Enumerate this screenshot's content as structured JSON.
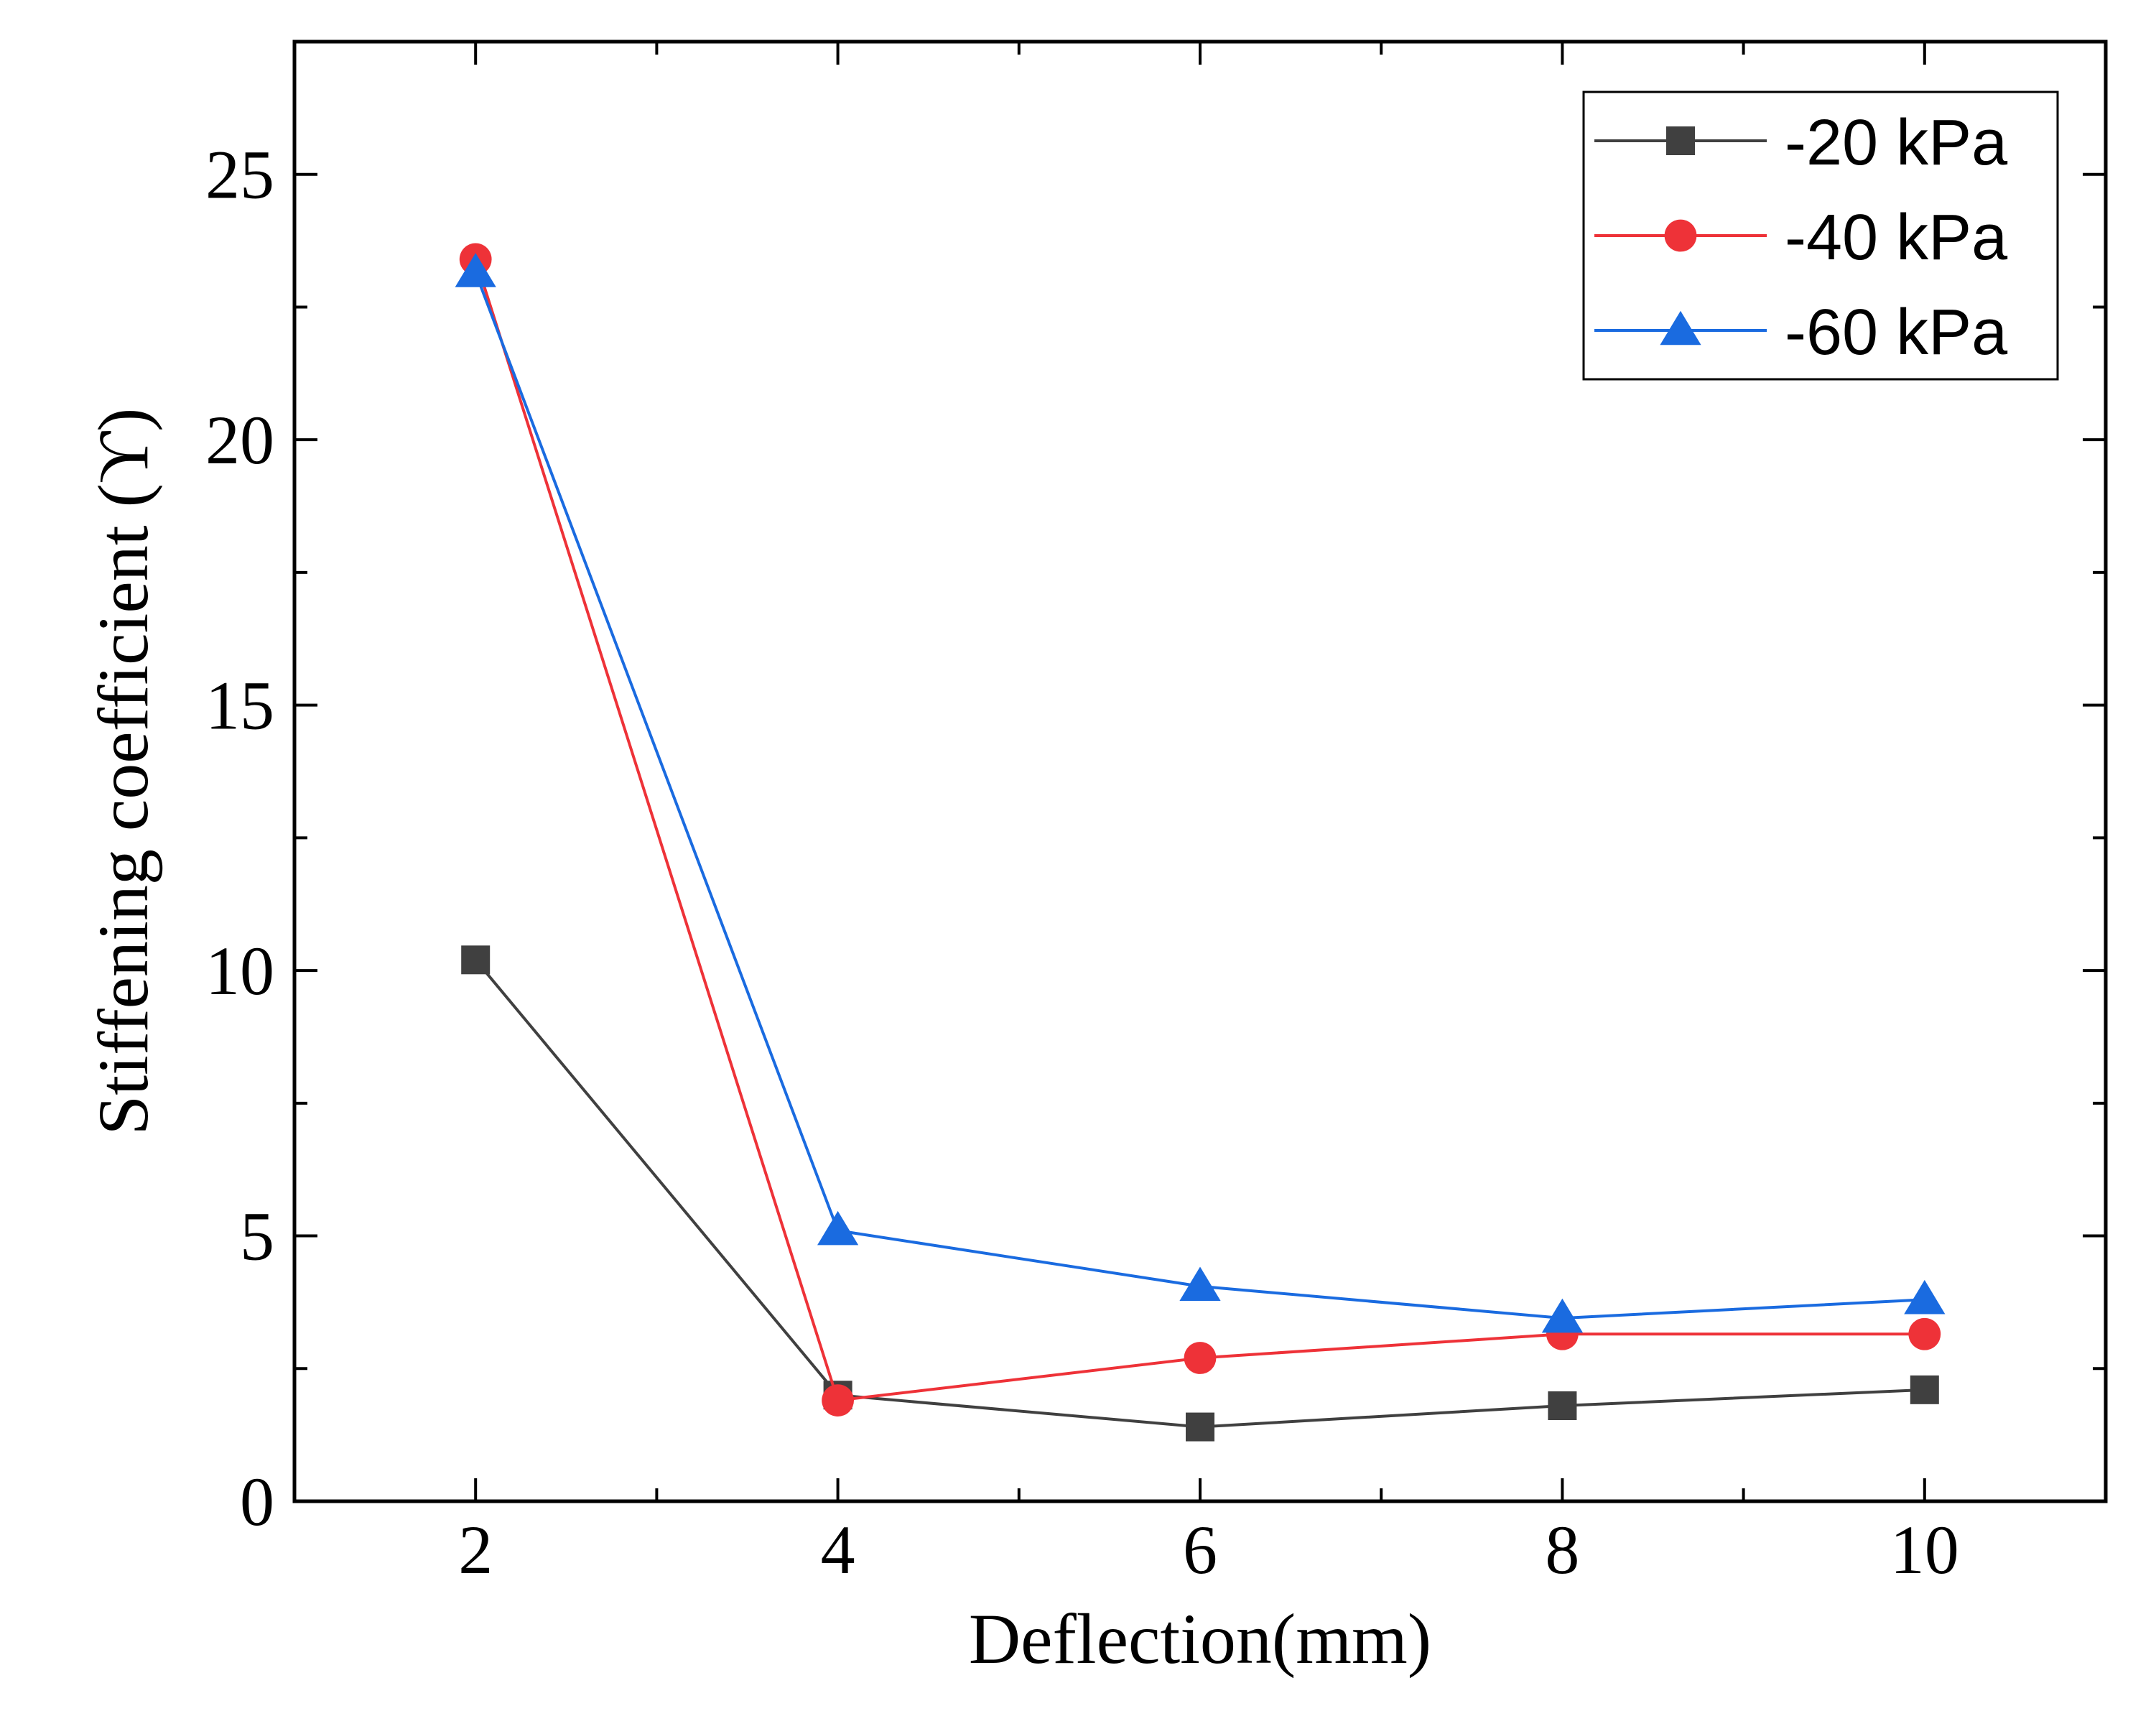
{
  "chart_data": {
    "type": "line",
    "xlabel": "Deflection(mm)",
    "ylabel": "Stiffening coefficient (ϒ)",
    "x": [
      2,
      4,
      6,
      8,
      10
    ],
    "xlim": [
      1,
      11
    ],
    "ylim": [
      0,
      27.5
    ],
    "xticks": [
      2,
      4,
      6,
      8,
      10
    ],
    "xtick_labels": [
      "2",
      "4",
      "6",
      "8",
      "10"
    ],
    "yticks": [
      0,
      5,
      10,
      15,
      20,
      25
    ],
    "ytick_labels": [
      "0",
      "5",
      "10",
      "15",
      "20",
      "25"
    ],
    "minor_ticks": true,
    "grid": false,
    "legend_position": "top-right",
    "series": [
      {
        "name": "-20 kPa",
        "values": [
          10.2,
          2.0,
          1.4,
          1.8,
          2.1
        ],
        "color": "#404040",
        "marker": "square"
      },
      {
        "name": "-40 kPa",
        "values": [
          23.4,
          1.9,
          2.7,
          3.15,
          3.15
        ],
        "color": "#ee3238",
        "marker": "circle"
      },
      {
        "name": "-60 kPa",
        "values": [
          23.15,
          5.1,
          4.05,
          3.45,
          3.8
        ],
        "color": "#1a6be0",
        "marker": "triangle"
      }
    ]
  }
}
